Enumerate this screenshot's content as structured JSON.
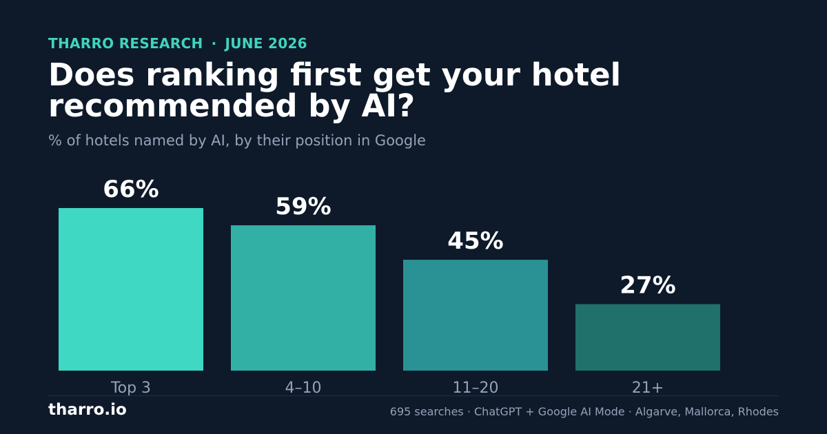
{
  "header": {
    "brand_label": "THARRO RESEARCH",
    "separator": "·",
    "date": "JUNE 2026",
    "title_line1": "Does ranking first get your hotel",
    "title_line2": "recommended by AI?",
    "subtitle": "% of hotels named by AI, by their position in Google"
  },
  "chart_data": {
    "type": "bar",
    "title": "Does ranking first get your hotel recommended by AI?",
    "subtitle": "% of hotels named by AI, by their position in Google",
    "categories": [
      "Top 3",
      "4–10",
      "11–20",
      "21+"
    ],
    "values": [
      66,
      59,
      45,
      27
    ],
    "value_labels": [
      "66%",
      "59%",
      "45%",
      "27%"
    ],
    "unit": "%",
    "ylim": [
      0,
      66
    ],
    "grid": false,
    "legend": "none",
    "colors": [
      "#3fd8c2",
      "#33b0a5",
      "#2a9294",
      "#20706c"
    ]
  },
  "footer": {
    "brand": "tharro.io",
    "source": "695 searches · ChatGPT + Google AI Mode · Algarve, Mallorca, Rhodes"
  }
}
